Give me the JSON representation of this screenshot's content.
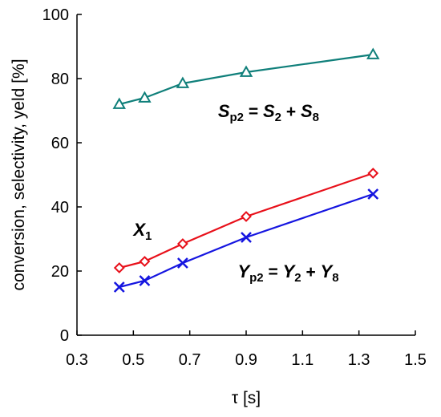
{
  "chart_data": {
    "type": "line",
    "xlabel": "τ [s]",
    "ylabel": "conversion, selectivity, yeld [%]",
    "xlim": [
      0.3,
      1.5
    ],
    "ylim": [
      0,
      100
    ],
    "xticks": [
      "0.3",
      "0.5",
      "0.7",
      "0.9",
      "1.1",
      "1.3",
      "1.5"
    ],
    "yticks": [
      "0",
      "20",
      "40",
      "60",
      "80",
      "100"
    ],
    "grid": false,
    "series": [
      {
        "id": "Sp2",
        "color": "#0f7f7a",
        "marker": "triangle",
        "x": [
          0.45,
          0.54,
          0.675,
          0.9,
          1.35
        ],
        "y": [
          72,
          74,
          78.5,
          82,
          87.5
        ]
      },
      {
        "id": "X1",
        "color": "#e8101a",
        "marker": "diamond",
        "x": [
          0.45,
          0.54,
          0.675,
          0.9,
          1.35
        ],
        "y": [
          21,
          23,
          28.5,
          37,
          50.5
        ]
      },
      {
        "id": "Yp2",
        "color": "#1515e0",
        "marker": "x",
        "x": [
          0.45,
          0.54,
          0.675,
          0.9,
          1.35
        ],
        "y": [
          15,
          17,
          22.5,
          30.5,
          44
        ]
      }
    ],
    "annotations": {
      "sp2": {
        "main": "S",
        "sub": "p2",
        "eq": " = ",
        "t1": "S",
        "s1": "2",
        "plus": " + ",
        "t2": "S",
        "s2": "8",
        "x": 0.8,
        "y": 68
      },
      "x1": {
        "main": "X",
        "sub": "1",
        "x": 0.5,
        "y": 31
      },
      "yp2": {
        "main": "Y",
        "sub": "p2",
        "eq": " = ",
        "t1": "Y",
        "s1": "2",
        "plus": " + ",
        "t2": "Y",
        "s2": "8",
        "x": 0.87,
        "y": 18
      }
    }
  }
}
